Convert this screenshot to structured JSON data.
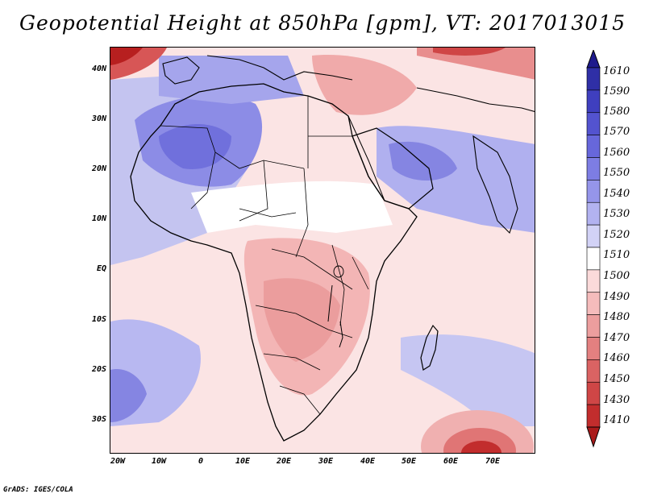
{
  "title": "Geopotential Height at 850hPa [gpm], VT: 2017013015",
  "credit": "GrADS: IGES/COLA",
  "lat_labels": [
    "40N",
    "30N",
    "20N",
    "10N",
    "EQ",
    "10S",
    "20S",
    "30S"
  ],
  "lon_labels": [
    "20W",
    "10W",
    "0",
    "10E",
    "20E",
    "30E",
    "40E",
    "50E",
    "60E",
    "70E"
  ],
  "colorbar": {
    "labels": [
      "1610",
      "1590",
      "1580",
      "1570",
      "1560",
      "1550",
      "1540",
      "1530",
      "1520",
      "1510",
      "1500",
      "1490",
      "1480",
      "1470",
      "1460",
      "1450",
      "1430",
      "1410"
    ],
    "colors": [
      "#1e1a8c",
      "#2f2fa6",
      "#3f3fbf",
      "#5353cf",
      "#6767db",
      "#7d7de3",
      "#9595ea",
      "#b2b2f0",
      "#d2d2f6",
      "#ffffff",
      "#fbdada",
      "#f5bcbc",
      "#ec9e9e",
      "#e38080",
      "#da6363",
      "#cf4646",
      "#c22d2d",
      "#aa1b1b"
    ]
  }
}
